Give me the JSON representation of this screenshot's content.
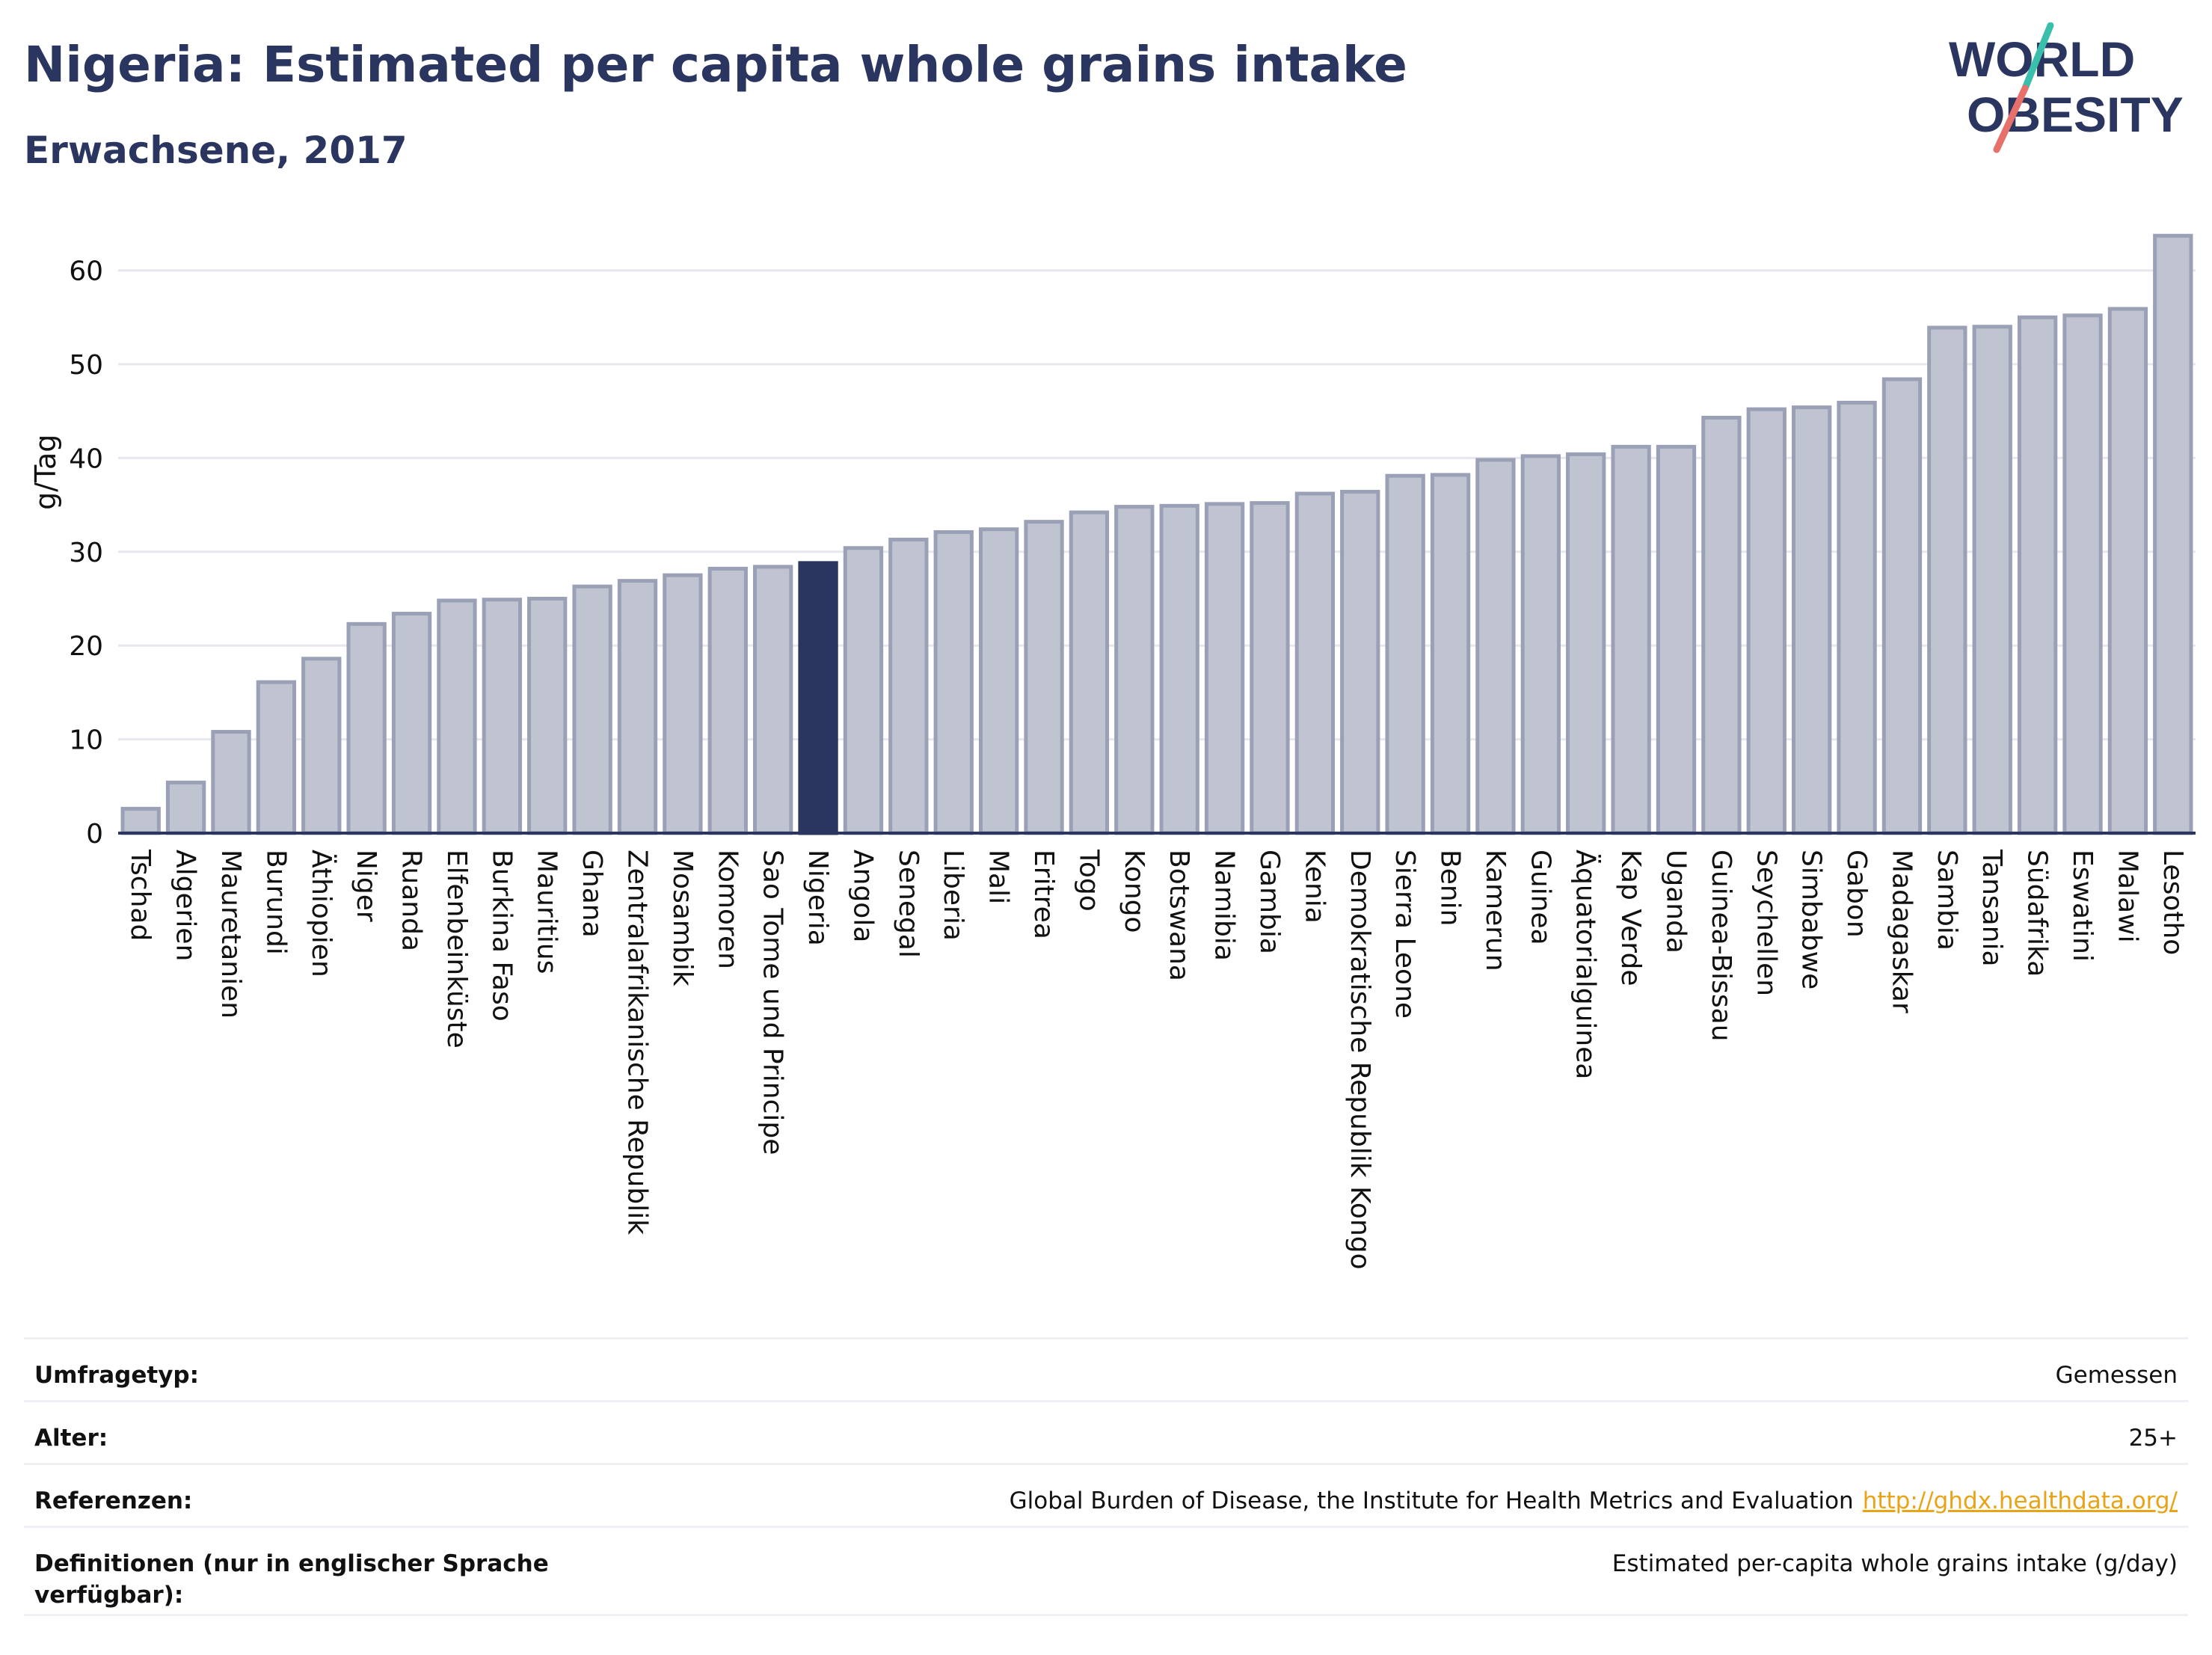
{
  "header": {
    "title": "Nigeria: Estimated per capita whole grains intake",
    "subtitle": "Erwachsene, 2017"
  },
  "logo": {
    "line1": "WORLD",
    "line2": "OBESITY",
    "accent_teal": "#3bbfad",
    "accent_coral": "#e8706a",
    "text_color": "#2a3560"
  },
  "colors": {
    "bar": "#c0c4d1",
    "bar_stroke": "#9aa0b5",
    "highlight": "#2a3560",
    "grid": "#e6e8ee",
    "axis": "#2a3560"
  },
  "chart_data": {
    "type": "bar",
    "title": "Nigeria: Estimated per capita whole grains intake",
    "subtitle": "Erwachsene, 2017",
    "xlabel": "",
    "ylabel": "g/Tag",
    "ylim": [
      0,
      67
    ],
    "yticks": [
      0,
      10,
      20,
      30,
      40,
      50,
      60
    ],
    "grid": true,
    "highlight": "Nigeria",
    "categories": [
      "Tschad",
      "Algerien",
      "Mauretanien",
      "Burundi",
      "Äthiopien",
      "Niger",
      "Ruanda",
      "Elfenbeinküste",
      "Burkina Faso",
      "Mauritius",
      "Ghana",
      "Zentralafrikanische Republik",
      "Mosambik",
      "Komoren",
      "Sao Tome und Principe",
      "Nigeria",
      "Angola",
      "Senegal",
      "Liberia",
      "Mali",
      "Eritrea",
      "Togo",
      "Kongo",
      "Botswana",
      "Namibia",
      "Gambia",
      "Kenia",
      "Demokratische Republik Kongo",
      "Sierra Leone",
      "Benin",
      "Kamerun",
      "Guinea",
      "Äquatorialguinea",
      "Kap Verde",
      "Uganda",
      "Guinea-Bissau",
      "Seychellen",
      "Simbabwe",
      "Gabon",
      "Madagaskar",
      "Sambia",
      "Tansania",
      "Südafrika",
      "Eswatini",
      "Malawi",
      "Lesotho"
    ],
    "values": [
      2.6,
      5.4,
      10.8,
      16.1,
      18.6,
      22.3,
      23.4,
      24.8,
      24.9,
      25.0,
      26.3,
      26.9,
      27.5,
      28.2,
      28.4,
      28.8,
      30.4,
      31.3,
      32.1,
      32.4,
      33.2,
      34.2,
      34.8,
      34.9,
      35.1,
      35.2,
      36.2,
      36.4,
      38.1,
      38.2,
      39.8,
      40.2,
      40.4,
      41.2,
      41.2,
      44.3,
      45.2,
      45.4,
      45.9,
      48.4,
      53.9,
      54.0,
      55.0,
      55.2,
      55.9,
      63.7
    ]
  },
  "meta": {
    "rows": [
      {
        "label": "Umfragetyp:",
        "value": "Gemessen",
        "link": ""
      },
      {
        "label": "Alter:",
        "value": "25+",
        "link": ""
      },
      {
        "label": "Referenzen:",
        "value": "Global Burden of Disease, the Institute for Health Metrics and Evaluation",
        "link": "http://ghdx.healthdata.org/"
      },
      {
        "label": "Definitionen (nur in englischer Sprache verfügbar):",
        "value": "Estimated per-capita whole grains intake (g/day)",
        "link": ""
      }
    ]
  }
}
